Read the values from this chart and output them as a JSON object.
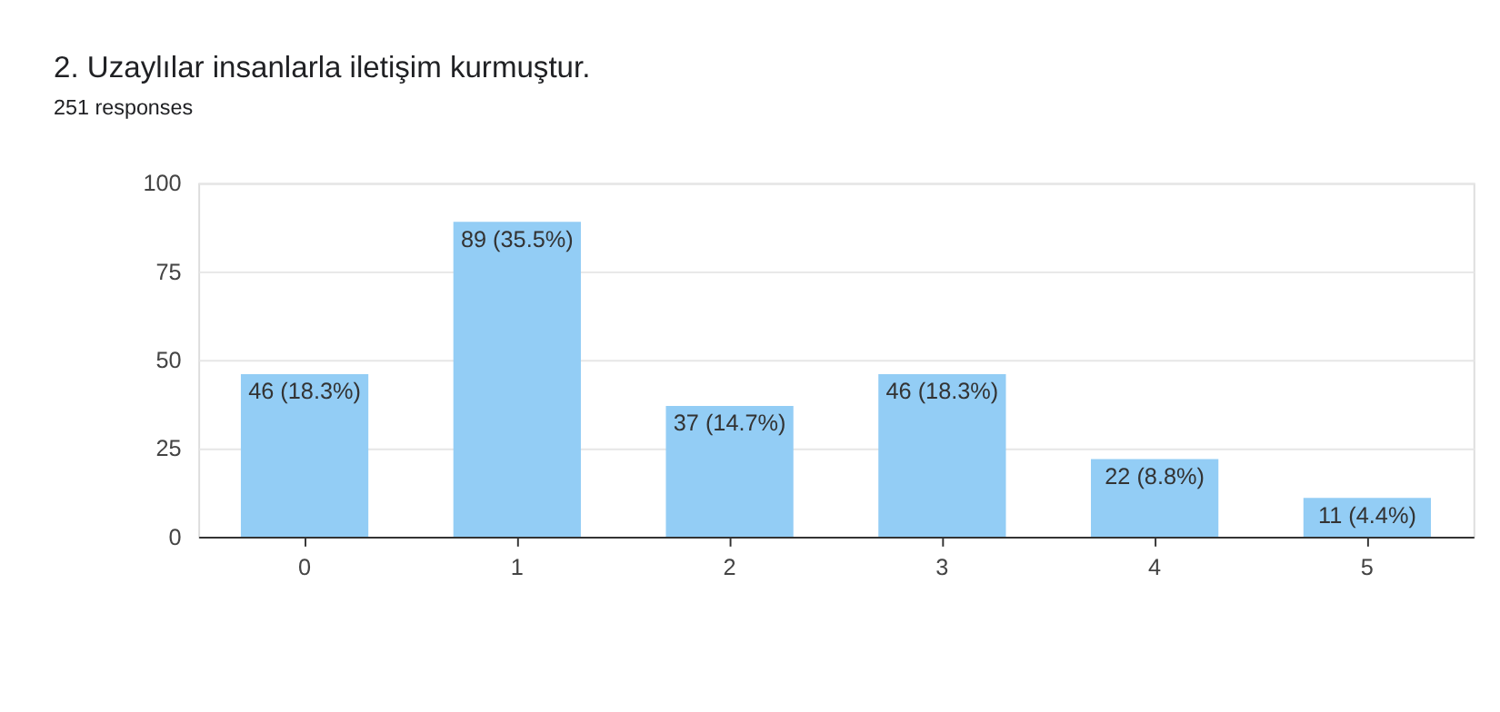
{
  "chart_data": {
    "type": "bar",
    "title": "2. Uzaylılar insanlarla iletişim kurmuştur.",
    "subtitle": "251 responses",
    "categories": [
      "0",
      "1",
      "2",
      "3",
      "4",
      "5"
    ],
    "values": [
      46,
      89,
      37,
      46,
      22,
      11
    ],
    "value_labels": [
      "46 (18.3%)",
      "89 (35.5%)",
      "37 (14.7%)",
      "46 (18.3%)",
      "22 (8.8%)",
      "11 (4.4%)"
    ],
    "color": "#93cdf5",
    "ylim": [
      0,
      100
    ],
    "yticks": [
      0,
      25,
      50,
      75,
      100
    ],
    "grid": "y"
  }
}
